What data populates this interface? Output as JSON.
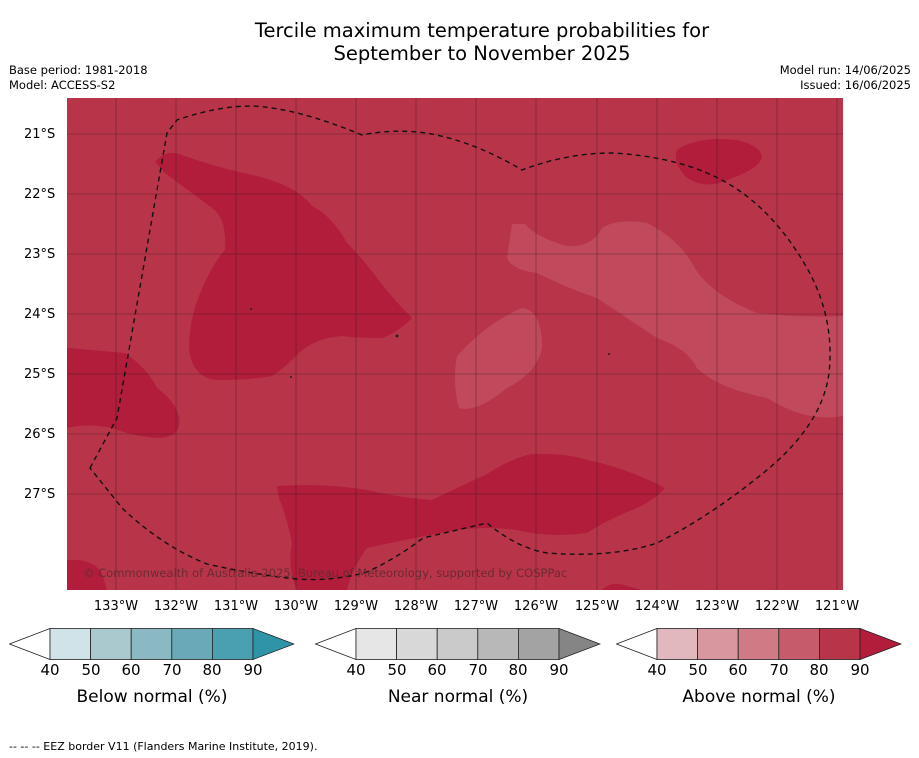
{
  "header": {
    "title_line1": "Tercile maximum temperature probabilities for",
    "title_line2": "September to November 2025",
    "base_period": "Base period: 1981-2018",
    "model": "Model: ACCESS-S2",
    "model_run": "Model run: 14/06/2025",
    "issued": "Issued: 16/06/2025"
  },
  "map": {
    "lat_labels": [
      "21°S",
      "22°S",
      "23°S",
      "24°S",
      "25°S",
      "26°S",
      "27°S"
    ],
    "lon_labels": [
      "133°W",
      "132°W",
      "131°W",
      "130°W",
      "129°W",
      "128°W",
      "127°W",
      "126°W",
      "125°W",
      "124°W",
      "123°W",
      "122°W",
      "121°W"
    ],
    "copyright": "© Commonwealth of Australia 2025, Bureau of Meteorology, supported by COSPPac",
    "category_shown": "Above normal",
    "colors": {
      "above_70_80": "#b83449",
      "above_80_90": "#b11d3b",
      "above_60_70": "#c05060"
    }
  },
  "colorbars": [
    {
      "title": "Below normal (%)",
      "ticks": [
        "40",
        "50",
        "60",
        "70",
        "80",
        "90"
      ],
      "colors": [
        "#cfe3e8",
        "#aac9cf",
        "#8ab8c3",
        "#6aa9b8",
        "#4aa0b1",
        "#2f94a8"
      ]
    },
    {
      "title": "Near normal (%)",
      "ticks": [
        "40",
        "50",
        "60",
        "70",
        "80",
        "90"
      ],
      "colors": [
        "#e6e6e6",
        "#d8d8d8",
        "#cacaca",
        "#b8b8b8",
        "#a3a3a3",
        "#858585"
      ]
    },
    {
      "title": "Above normal (%)",
      "ticks": [
        "40",
        "50",
        "60",
        "70",
        "80",
        "90"
      ],
      "colors": [
        "#e2b8bf",
        "#d8969f",
        "#cf7a84",
        "#c65c6b",
        "#b83449",
        "#b11d3b"
      ]
    }
  ],
  "footnote": "--  --  -- EEZ border V11 (Flanders Marine Institute, 2019)."
}
